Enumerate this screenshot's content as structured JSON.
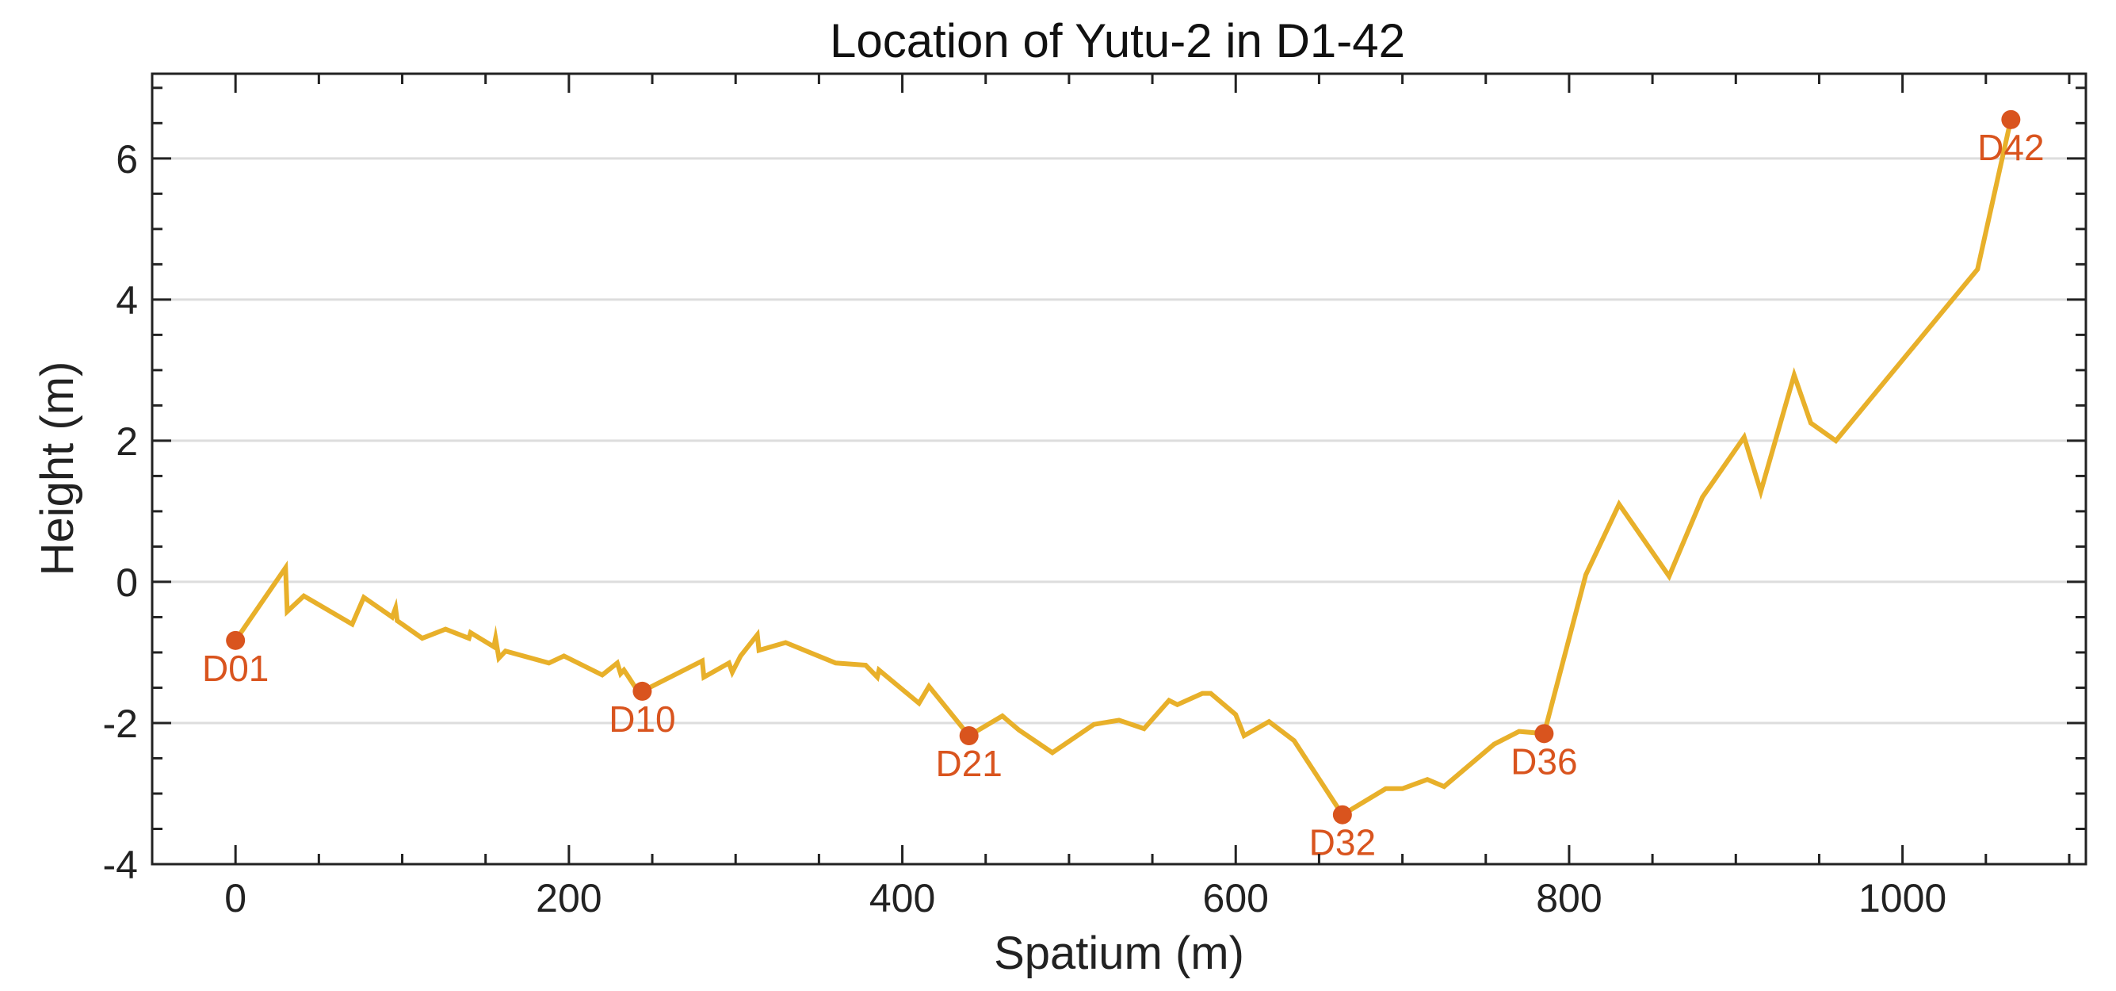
{
  "chart_data": {
    "type": "line",
    "title": "Location of Yutu-2 in D1-42",
    "xlabel": "Spatium (m)",
    "ylabel": "Height (m)",
    "xlim": [
      -50,
      1110
    ],
    "ylim": [
      -4,
      7.2
    ],
    "xticks": [
      0,
      200,
      400,
      600,
      800,
      1000
    ],
    "yticks": [
      -4,
      -2,
      0,
      2,
      4,
      6
    ],
    "xtick_labels": [
      "0",
      "200",
      "400",
      "600",
      "800",
      "1000"
    ],
    "ytick_labels": [
      "-4",
      "-2",
      "0",
      "2",
      "4",
      "6"
    ],
    "x_minor_step": 50,
    "y_minor_step": 0.5,
    "grid": "horizontal",
    "line_color": "#e8b02a",
    "marker_color": "#d9541e",
    "series": [
      {
        "x": [
          0,
          30,
          31,
          41,
          70,
          77,
          94,
          96,
          97,
          112,
          126,
          140,
          141,
          148,
          155,
          156,
          158,
          162,
          188,
          197,
          220,
          229,
          231,
          233,
          235,
          240,
          244,
          280,
          281,
          296,
          298,
          303,
          313,
          314,
          330,
          360,
          378,
          385,
          386,
          410,
          416,
          440,
          460,
          470,
          490,
          515,
          530,
          545,
          560,
          565,
          580,
          585,
          600,
          605,
          620,
          635,
          664,
          690,
          700,
          715,
          725,
          755,
          770,
          785,
          810,
          830,
          860,
          880,
          905,
          915,
          935,
          945,
          960,
          1045,
          1065
        ],
        "y": [
          -0.83,
          0.2,
          -0.42,
          -0.2,
          -0.6,
          -0.22,
          -0.5,
          -0.37,
          -0.55,
          -0.8,
          -0.67,
          -0.8,
          -0.72,
          -0.82,
          -0.92,
          -0.8,
          -1.08,
          -0.98,
          -1.15,
          -1.05,
          -1.32,
          -1.15,
          -1.3,
          -1.25,
          -1.32,
          -1.5,
          -1.55,
          -1.12,
          -1.35,
          -1.15,
          -1.28,
          -1.05,
          -0.75,
          -0.97,
          -0.86,
          -1.15,
          -1.18,
          -1.35,
          -1.25,
          -1.72,
          -1.48,
          -2.18,
          -1.9,
          -2.1,
          -2.42,
          -2.02,
          -1.96,
          -2.08,
          -1.68,
          -1.74,
          -1.58,
          -1.58,
          -1.88,
          -2.18,
          -1.98,
          -2.25,
          -3.3,
          -2.93,
          -2.93,
          -2.8,
          -2.9,
          -2.3,
          -2.12,
          -2.15,
          0.1,
          1.1,
          0.08,
          1.2,
          2.05,
          1.28,
          2.93,
          2.25,
          2.0,
          4.43,
          6.55
        ]
      }
    ],
    "markers": [
      {
        "label": "D01",
        "x": 0,
        "y": -0.83
      },
      {
        "label": "D10",
        "x": 244,
        "y": -1.55
      },
      {
        "label": "D21",
        "x": 440,
        "y": -2.18
      },
      {
        "label": "D32",
        "x": 664,
        "y": -3.3
      },
      {
        "label": "D36",
        "x": 785,
        "y": -2.15
      },
      {
        "label": "D42",
        "x": 1065,
        "y": 6.55
      }
    ]
  }
}
